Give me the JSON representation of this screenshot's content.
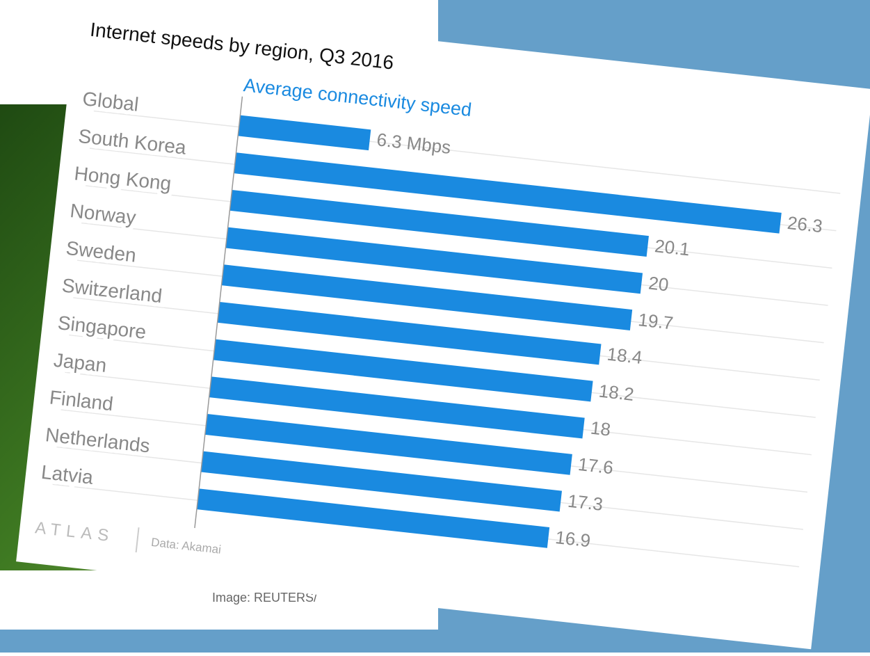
{
  "chart_data": {
    "type": "bar",
    "orientation": "horizontal",
    "title": "Internet speeds by region, Q3 2016",
    "subtitle": "Average connectivity speed",
    "categories": [
      "Global",
      "South Korea",
      "Hong Kong",
      "Norway",
      "Sweden",
      "Switzerland",
      "Singapore",
      "Japan",
      "Finland",
      "Netherlands",
      "Latvia"
    ],
    "values": [
      6.3,
      26.3,
      20.1,
      20,
      19.7,
      18.4,
      18.2,
      18,
      17.6,
      17.3,
      16.9
    ],
    "value_labels": [
      "6.3 Mbps",
      "26.3",
      "20.1",
      "20",
      "19.7",
      "18.4",
      "18.2",
      "18",
      "17.6",
      "17.3",
      "16.9"
    ],
    "color": "#1a8ae0",
    "xlim": [
      0,
      28
    ],
    "grid": true,
    "logo": "ATLAS",
    "source": "Data: Akamai"
  },
  "caption": "Image: REUTERS/"
}
